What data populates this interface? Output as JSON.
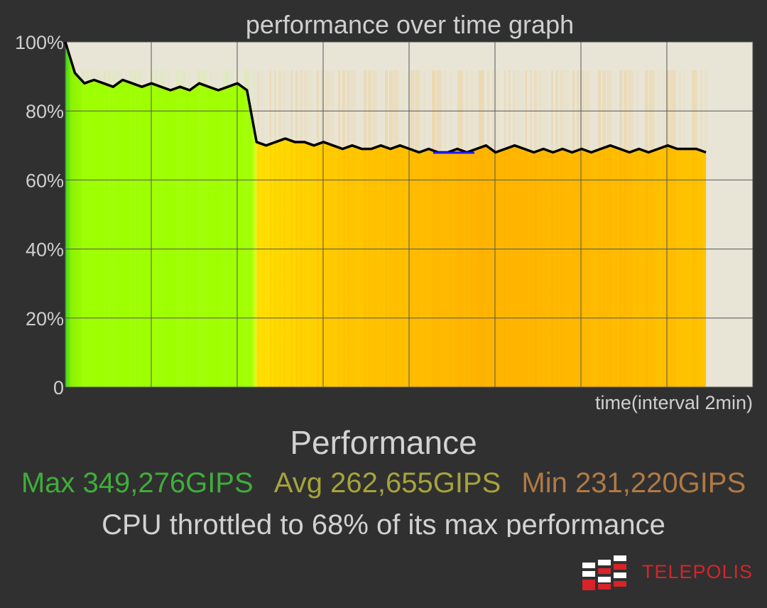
{
  "chart_data": {
    "type": "area",
    "title": "performance over time graph",
    "xlabel": "time(interval 2min)",
    "ylabel": "",
    "ylim": [
      0,
      100
    ],
    "y_ticks": [
      "0",
      "20%",
      "40%",
      "60%",
      "80%",
      "100%"
    ],
    "x_interval_minutes": 2,
    "grid": true,
    "series": [
      {
        "values": [
          100,
          91,
          88,
          89,
          88,
          87,
          89,
          88,
          87,
          88,
          87,
          86,
          87,
          86,
          88,
          87,
          86,
          87,
          88,
          86,
          71,
          70,
          71,
          72,
          71,
          71,
          70,
          71,
          70,
          69,
          70,
          69,
          69,
          70,
          69,
          70,
          69,
          68,
          69,
          68,
          68,
          69,
          68,
          69,
          70,
          68,
          69,
          70,
          69,
          68,
          69,
          68,
          69,
          68,
          69,
          68,
          69,
          70,
          69,
          68,
          69,
          68,
          69,
          70,
          69,
          69,
          69,
          68
        ]
      }
    ],
    "colors": {
      "plot_background": "#e8e5d6",
      "throttle_free_fill": "#9aff00",
      "throttled_fill": "#ffc200",
      "line": "#000000",
      "highlight": "#1a1aff"
    }
  },
  "summary": {
    "title": "Performance",
    "max": "Max 349,276GIPS",
    "avg": "Avg 262,655GIPS",
    "min": "Min 231,220GIPS",
    "throttle": "CPU throttled to 68% of its max performance"
  },
  "logo": {
    "text": "TELEPOLIS"
  }
}
